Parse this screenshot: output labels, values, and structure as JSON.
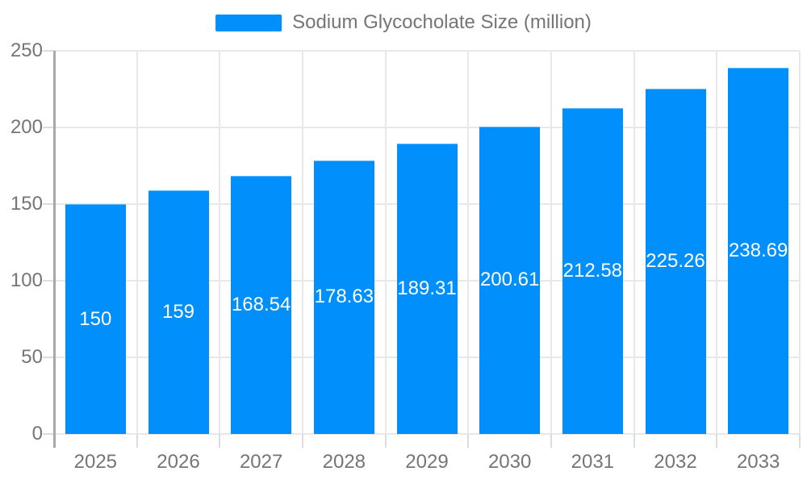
{
  "page": {
    "background": "#ffffff"
  },
  "legend": {
    "label": "Sodium Glycocholate Size (million)"
  },
  "chart_data": {
    "type": "bar",
    "title": "Sodium Glycocholate Size (million)",
    "categories": [
      "2025",
      "2026",
      "2027",
      "2028",
      "2029",
      "2030",
      "2031",
      "2032",
      "2033"
    ],
    "values": [
      150,
      159,
      168.54,
      178.63,
      189.31,
      200.61,
      212.58,
      225.26,
      238.69
    ],
    "value_labels": [
      "150",
      "159",
      "168.54",
      "178.63",
      "189.31",
      "200.61",
      "212.58",
      "225.26",
      "238.69"
    ],
    "xlabel": "",
    "ylabel": "",
    "ylim": [
      0,
      250
    ],
    "yticks": [
      0,
      50,
      100,
      150,
      200,
      250
    ],
    "grid": "on",
    "legend_position": "top-center",
    "data_labels": "inside-center",
    "colors": {
      "bar": "#008ffb",
      "bar_stroke": "#55b5fd",
      "axis_label": "#757575",
      "gridline": "#e8e8e8",
      "axis_line": "#a8a8a8",
      "tick": "#dcdcdc",
      "data_label": "#ffffff",
      "background": "#ffffff"
    }
  }
}
